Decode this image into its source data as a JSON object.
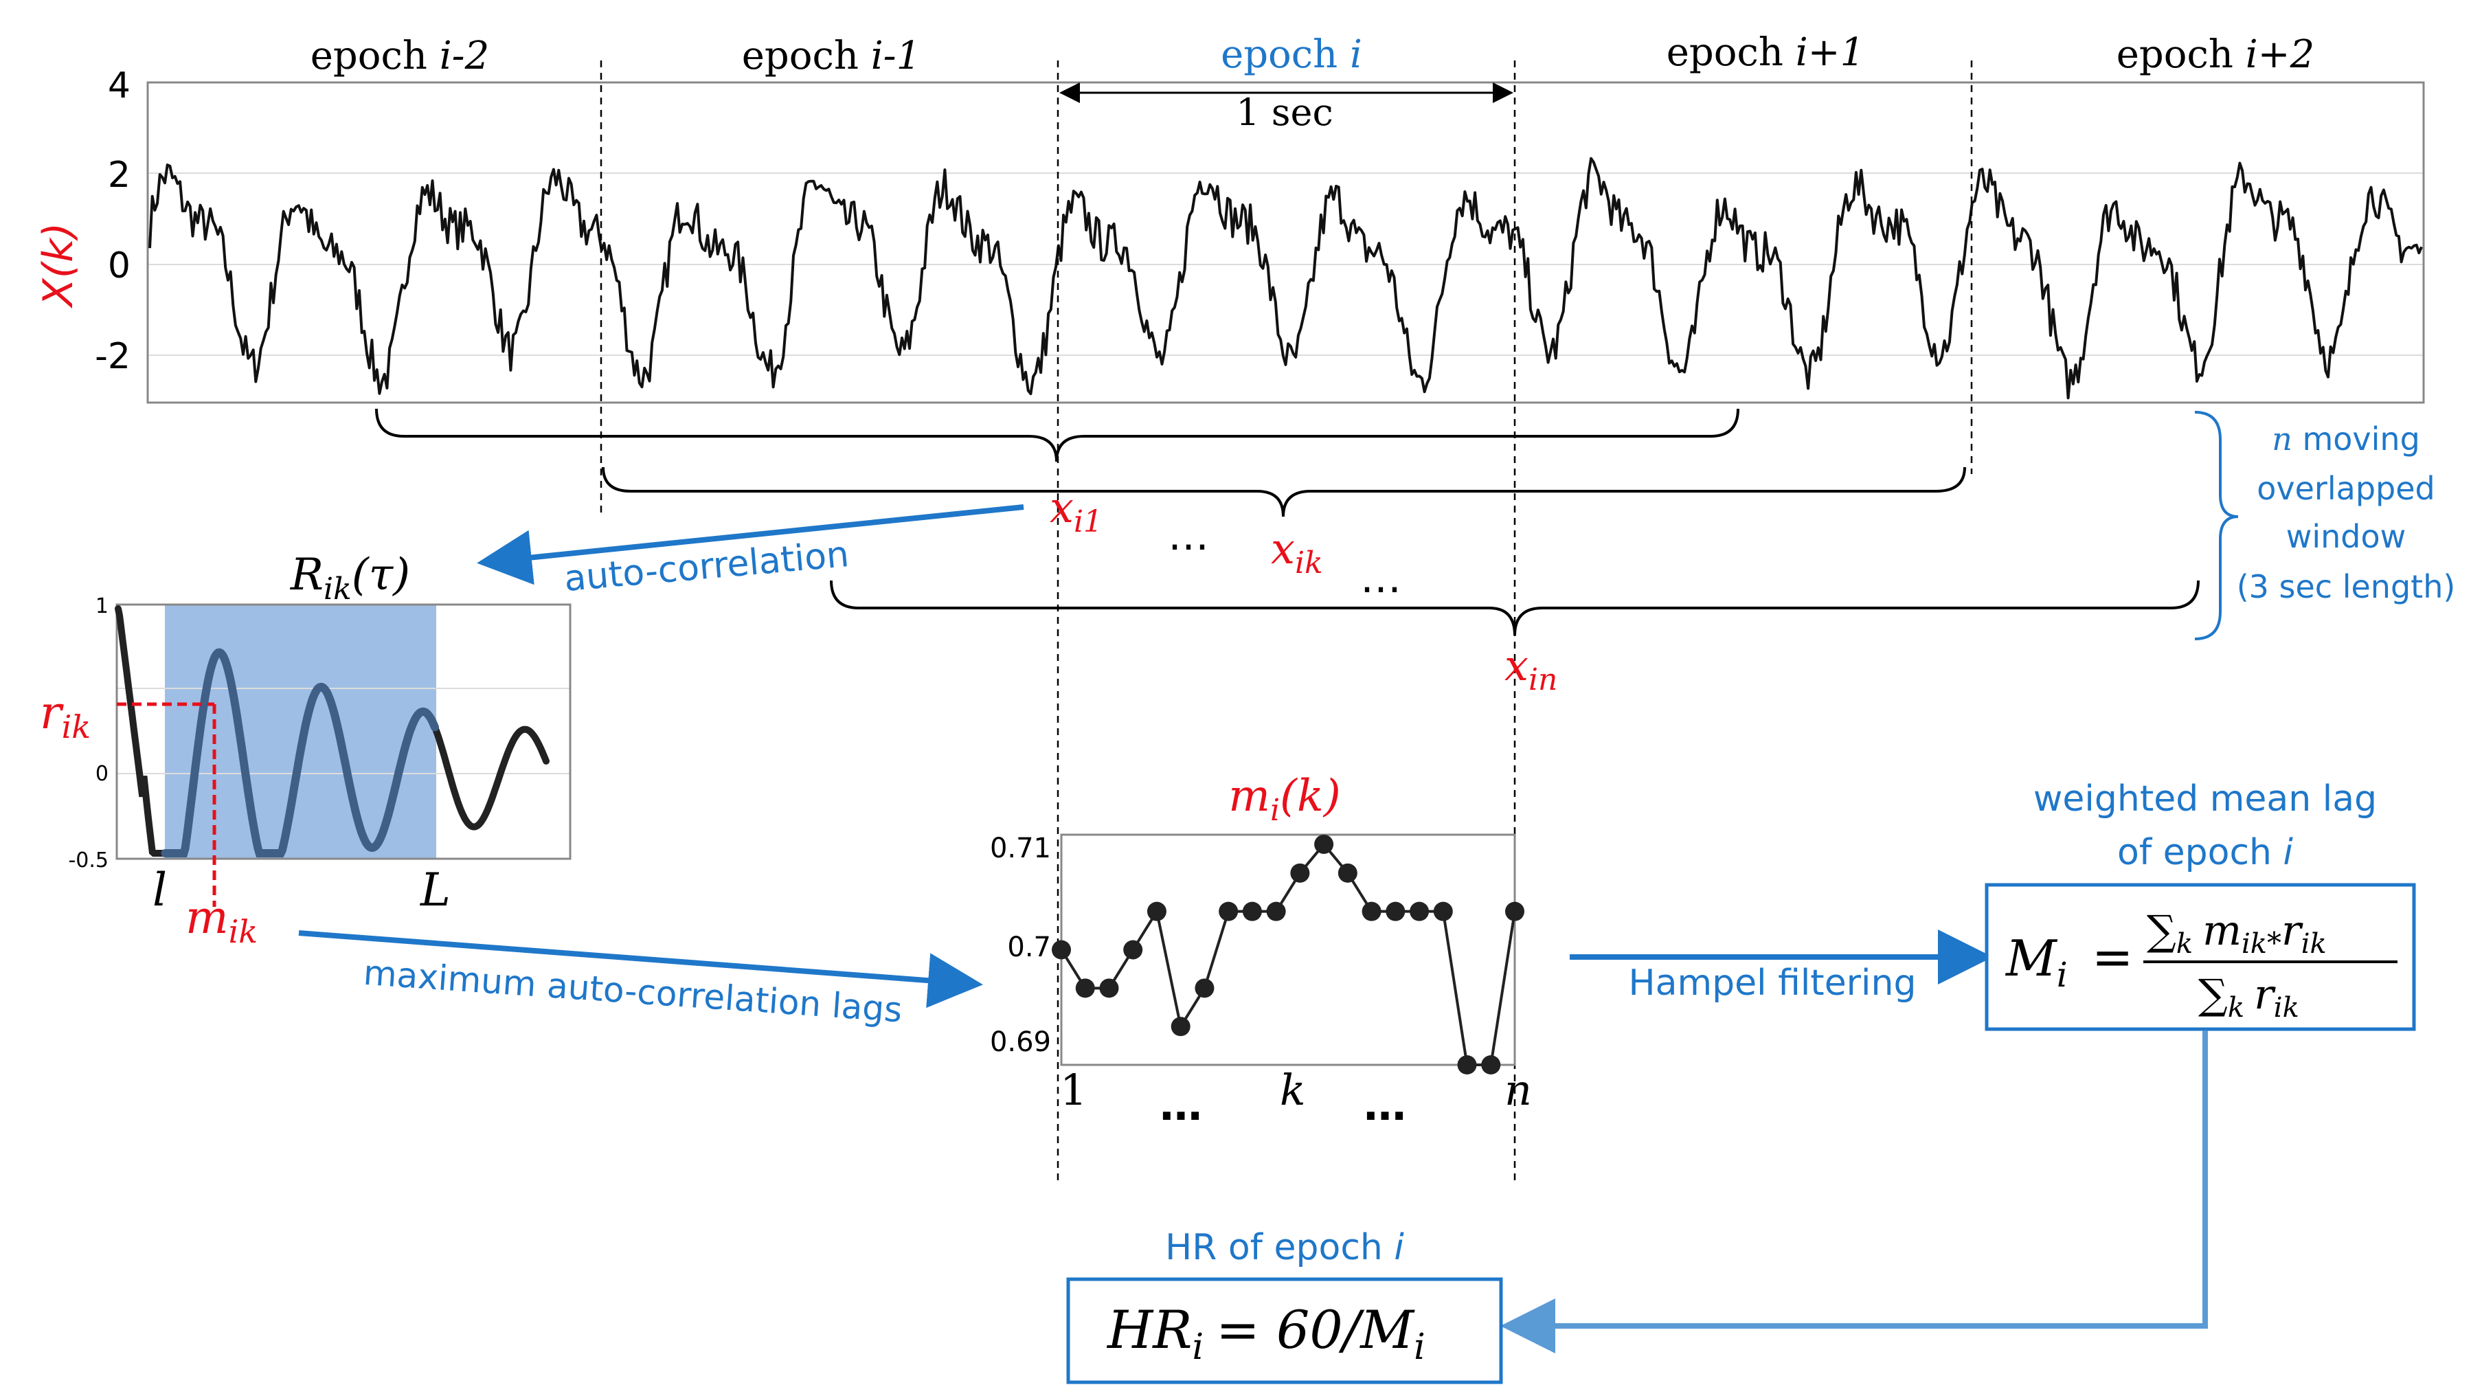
{
  "top_plot": {
    "ylabel": "X(k)",
    "y_ticks": [
      "4",
      "2",
      "0",
      "-2"
    ],
    "ylim": [
      -3,
      4
    ],
    "epochs": [
      {
        "label": "epoch",
        "suffix": "i-2"
      },
      {
        "label": "epoch",
        "suffix": "i-1"
      },
      {
        "label": "epoch",
        "suffix": "i"
      },
      {
        "label": "epoch",
        "suffix": "i+1"
      },
      {
        "label": "epoch",
        "suffix": "i+2"
      }
    ],
    "duration_label": "1 sec"
  },
  "window_labels": {
    "x_i1": "x",
    "x_i1_sub": "i1",
    "x_ik": "x",
    "x_ik_sub": "ik",
    "x_in": "x",
    "x_in_sub": "in",
    "dots": "…"
  },
  "moving_window_note": {
    "line1_italic": "n",
    "line1_rest": " moving",
    "line2": "overlapped",
    "line3": "window",
    "line4": "(3 sec length)"
  },
  "autocorr_arrow_label": "auto-correlation",
  "autocorr_plot": {
    "title_main": "R",
    "title_sub": "ik",
    "title_arg": "(τ)",
    "y_ticks": [
      "1",
      "0",
      "-0.5"
    ],
    "r_label": "r",
    "r_sub": "ik",
    "l_label": "l",
    "L_label": "L",
    "m_label": "m",
    "m_sub": "ik"
  },
  "lags_arrow_label": "maximum auto-correlation lags",
  "mi_plot": {
    "title_main": "m",
    "title_sub": "i",
    "title_arg": "(k)",
    "y_ticks": [
      "0.71",
      "0.7",
      "0.69"
    ],
    "x_labels": {
      "first": "1",
      "dots1": "…",
      "mid": "k",
      "dots2": "…",
      "last": "n"
    },
    "chart_data": {
      "type": "line",
      "x": [
        1,
        2,
        3,
        4,
        5,
        6,
        7,
        8,
        9,
        10,
        11,
        12,
        13,
        14,
        15,
        16,
        17,
        18,
        19,
        20
      ],
      "values": [
        0.6995,
        0.6955,
        0.6955,
        0.6995,
        0.7035,
        0.6915,
        0.6955,
        0.7035,
        0.7035,
        0.7035,
        0.7075,
        0.7105,
        0.7075,
        0.7035,
        0.7035,
        0.7035,
        0.7035,
        0.6875,
        0.6875,
        0.7035
      ],
      "ylim": [
        0.6875,
        0.7115
      ]
    }
  },
  "hampel_label": "Hampel filtering",
  "weighted_mean": {
    "title_line1": "weighted mean lag",
    "title_line2": "of epoch ",
    "title_line2_italic": "i",
    "lhs": "M",
    "lhs_sub": "i",
    "equals": "=",
    "num_sum": "∑",
    "num_sum_sub": "k",
    "num_m": "m",
    "num_m_sub": "ik",
    "num_op": "*",
    "num_r": "r",
    "num_r_sub": "ik",
    "den_sum": "∑",
    "den_sum_sub": "k",
    "den_r": "r",
    "den_r_sub": "ik"
  },
  "hr": {
    "title": "HR of epoch ",
    "title_italic": "i",
    "lhs": "HR",
    "lhs_sub": "i",
    "rhs": "= 60/M",
    "rhs_sub": "i"
  },
  "colors": {
    "blue": "#1f77c9",
    "red": "#e8101a",
    "signal": "#111111",
    "window_fill": "#7fa8dc",
    "autocorr_curve": "#222222",
    "grid": "#dcdcdc"
  }
}
